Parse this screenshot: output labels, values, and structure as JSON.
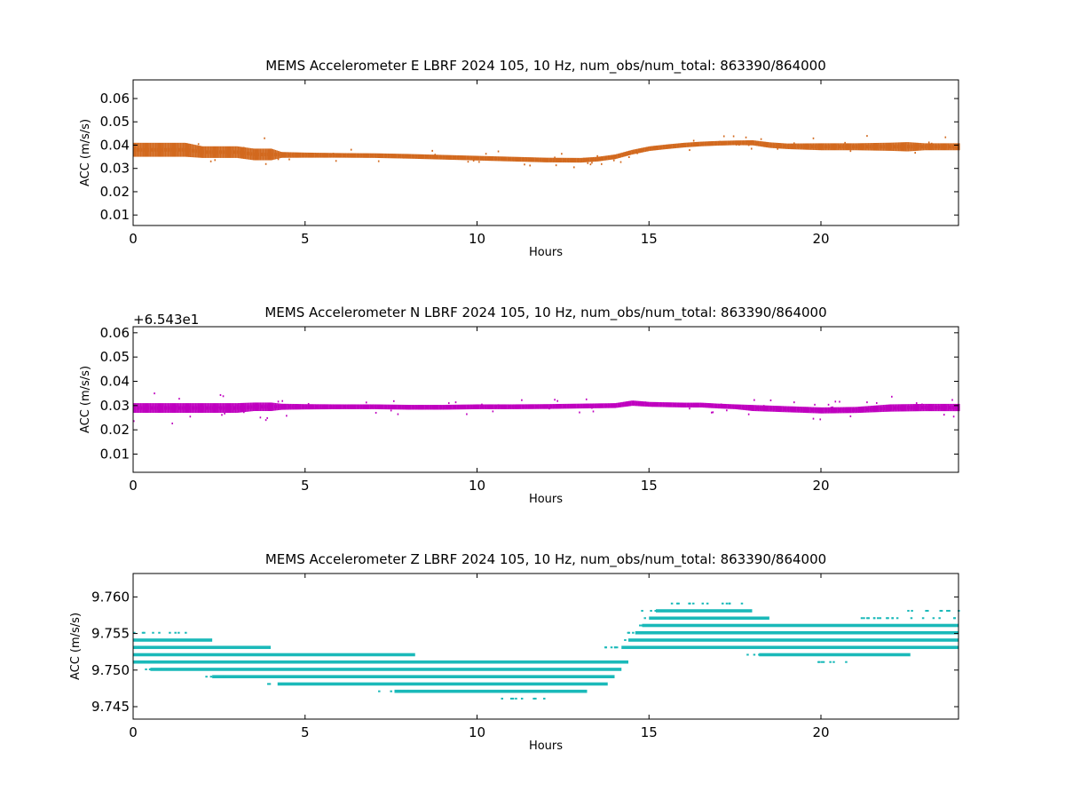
{
  "figure": {
    "background": "#ffffff"
  },
  "chart_data": [
    {
      "type": "scatter",
      "title": "MEMS Accelerometer E LBRF 2024 105, 10 Hz, num_obs/num_total: 863390/864000",
      "xlabel": "Hours",
      "ylabel": "ACC (m/s/s)",
      "xlim": [
        0,
        24
      ],
      "ylim": [
        0.0055,
        0.068
      ],
      "xticks": [
        0,
        5,
        10,
        15,
        20
      ],
      "xtick_labels": [
        "0",
        "5",
        "10",
        "15",
        "20"
      ],
      "yticks": [
        0.01,
        0.02,
        0.03,
        0.04,
        0.05,
        0.06
      ],
      "ytick_labels": [
        "0.01",
        "0.02",
        "0.03",
        "0.04",
        "0.05",
        "0.06"
      ],
      "offset_text": "",
      "color": "#d2691e",
      "grid": false,
      "series": [
        {
          "x": [
            0,
            0.5,
            1,
            1.5,
            2,
            2.5,
            3,
            3.5,
            4,
            4.3,
            5,
            6,
            7,
            8,
            9,
            10,
            11,
            12,
            13,
            13.5,
            14,
            14.5,
            15,
            15.5,
            16,
            16.5,
            17,
            17.5,
            18,
            18.5,
            19,
            20,
            21,
            22,
            22.5,
            23,
            24
          ],
          "y": [
            0.038,
            0.038,
            0.038,
            0.038,
            0.037,
            0.037,
            0.037,
            0.036,
            0.036,
            0.0358,
            0.0357,
            0.0356,
            0.0355,
            0.0352,
            0.0348,
            0.0344,
            0.034,
            0.0336,
            0.0335,
            0.034,
            0.035,
            0.037,
            0.0385,
            0.0393,
            0.04,
            0.0405,
            0.0408,
            0.041,
            0.041,
            0.04,
            0.0395,
            0.0393,
            0.0393,
            0.0393,
            0.0393,
            0.0393,
            0.0393
          ],
          "band": [
            0.006,
            0.006,
            0.006,
            0.006,
            0.005,
            0.005,
            0.005,
            0.005,
            0.005,
            0.0025,
            0.0022,
            0.002,
            0.002,
            0.002,
            0.002,
            0.002,
            0.002,
            0.002,
            0.002,
            0.002,
            0.002,
            0.002,
            0.002,
            0.002,
            0.002,
            0.002,
            0.002,
            0.002,
            0.0022,
            0.0024,
            0.0024,
            0.003,
            0.003,
            0.0035,
            0.004,
            0.003,
            0.003
          ]
        }
      ]
    },
    {
      "type": "scatter",
      "title": "MEMS Accelerometer N LBRF 2024 105, 10 Hz, num_obs/num_total: 863390/864000",
      "xlabel": "Hours",
      "ylabel": "ACC (m/s/s)",
      "xlim": [
        0,
        24
      ],
      "ylim": [
        0.0025,
        0.0625
      ],
      "xticks": [
        0,
        5,
        10,
        15,
        20
      ],
      "xtick_labels": [
        "0",
        "5",
        "10",
        "15",
        "20"
      ],
      "yticks": [
        0.01,
        0.02,
        0.03,
        0.04,
        0.05,
        0.06
      ],
      "ytick_labels": [
        "0.01",
        "0.02",
        "0.03",
        "0.04",
        "0.05",
        "0.06"
      ],
      "offset_text": "+6.543e1",
      "color": "#bf00bf",
      "grid": false,
      "series": [
        {
          "x": [
            0,
            0.5,
            1,
            1.5,
            2,
            2.5,
            3,
            3.5,
            4,
            4.3,
            5,
            6,
            7,
            8,
            9,
            10,
            11,
            12,
            13,
            14,
            14.5,
            15,
            16,
            16.5,
            17,
            17.5,
            18,
            19,
            20,
            21,
            22,
            23,
            24
          ],
          "y": [
            0.029,
            0.029,
            0.029,
            0.029,
            0.029,
            0.029,
            0.029,
            0.0295,
            0.0295,
            0.0295,
            0.0295,
            0.0295,
            0.0295,
            0.0293,
            0.0293,
            0.0295,
            0.0295,
            0.0296,
            0.0298,
            0.03,
            0.031,
            0.0305,
            0.0302,
            0.0302,
            0.0298,
            0.0295,
            0.029,
            0.0285,
            0.028,
            0.0282,
            0.029,
            0.0292,
            0.0292
          ],
          "band": [
            0.004,
            0.004,
            0.004,
            0.004,
            0.004,
            0.004,
            0.004,
            0.0035,
            0.0035,
            0.0025,
            0.0022,
            0.002,
            0.002,
            0.002,
            0.002,
            0.002,
            0.002,
            0.002,
            0.002,
            0.002,
            0.0022,
            0.002,
            0.002,
            0.002,
            0.002,
            0.002,
            0.0025,
            0.0025,
            0.0025,
            0.0025,
            0.003,
            0.003,
            0.003
          ]
        }
      ]
    },
    {
      "type": "scatter",
      "title": "MEMS Accelerometer Z LBRF 2024 105, 10 Hz, num_obs/num_total: 863390/864000",
      "xlabel": "Hours",
      "ylabel": "ACC (m/s/s)",
      "xlim": [
        0,
        24
      ],
      "ylim": [
        9.7433,
        9.7632
      ],
      "xticks": [
        0,
        5,
        10,
        15,
        20
      ],
      "xtick_labels": [
        "0",
        "5",
        "10",
        "15",
        "20"
      ],
      "yticks": [
        9.745,
        9.75,
        9.755,
        9.76
      ],
      "ytick_labels": [
        "9.745",
        "9.750",
        "9.755",
        "9.760"
      ],
      "offset_text": "",
      "color": "#1ab9b9",
      "grid": false,
      "series": [
        {
          "levels": [
            {
              "y": 9.7551,
              "start": 0.0,
              "end": 1.5,
              "sparse": true
            },
            {
              "y": 9.7541,
              "start": 0.0,
              "end": 2.3,
              "sparse": false
            },
            {
              "y": 9.7531,
              "start": 0.0,
              "end": 4.0,
              "sparse": false
            },
            {
              "y": 9.7521,
              "start": 0.0,
              "end": 8.2,
              "sparse": false
            },
            {
              "y": 9.7511,
              "start": 0.0,
              "end": 14.4,
              "sparse": false
            },
            {
              "y": 9.7501,
              "start": 0.5,
              "end": 14.2,
              "sparse": false
            },
            {
              "y": 9.7491,
              "start": 2.3,
              "end": 14.0,
              "sparse": false
            },
            {
              "y": 9.7481,
              "start": 4.2,
              "end": 13.8,
              "sparse": false
            },
            {
              "y": 9.7471,
              "start": 7.6,
              "end": 13.2,
              "sparse": false
            },
            {
              "y": 9.7461,
              "start": 10.6,
              "end": 12.0,
              "sparse": true
            },
            {
              "y": 9.7591,
              "start": 15.6,
              "end": 17.7,
              "sparse": true
            },
            {
              "y": 9.7581,
              "start": 15.2,
              "end": 18.0,
              "sparse": false
            },
            {
              "y": 9.7571,
              "start": 15.0,
              "end": 18.5,
              "sparse": false
            },
            {
              "y": 9.7561,
              "start": 14.8,
              "end": 24.0,
              "sparse": false
            },
            {
              "y": 9.7551,
              "start": 14.6,
              "end": 24.0,
              "sparse": false
            },
            {
              "y": 9.7541,
              "start": 14.4,
              "end": 24.0,
              "sparse": false
            },
            {
              "y": 9.7531,
              "start": 14.2,
              "end": 24.0,
              "sparse": false
            },
            {
              "y": 9.7521,
              "start": 18.2,
              "end": 22.6,
              "sparse": false
            },
            {
              "y": 9.7511,
              "start": 19.6,
              "end": 20.8,
              "sparse": true
            },
            {
              "y": 9.7581,
              "start": 22.5,
              "end": 24.0,
              "sparse": true
            },
            {
              "y": 9.7571,
              "start": 20.8,
              "end": 24.0,
              "sparse": true
            }
          ]
        }
      ]
    }
  ]
}
